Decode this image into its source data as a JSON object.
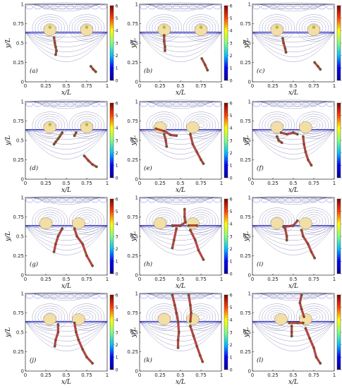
{
  "figure": {
    "rows": 4,
    "cols": 3
  },
  "chart_data": {
    "type": "scatter",
    "xlabel": "x/L",
    "ylabel": "y/L",
    "x_ticks": [
      "0",
      "0.25",
      "0.5",
      "0.75",
      "1"
    ],
    "y_ticks": [
      "0",
      "0.25",
      "0.5",
      "0.75",
      "1"
    ],
    "xlim": [
      0,
      1
    ],
    "ylim": [
      0,
      1
    ],
    "interface_y": 0.64,
    "colorbar": {
      "range": [
        0,
        6
      ],
      "ticks": [
        "0",
        "1",
        "2",
        "3",
        "4",
        "5",
        "6"
      ],
      "colormap": [
        "#00008f",
        "#0000ff",
        "#00bfff",
        "#7fff7f",
        "#ffff00",
        "#ff4000",
        "#800000"
      ]
    },
    "colors": {
      "contour": "#5a5aa0",
      "particles": "#b03030",
      "particle_edge": "#3a7a3a",
      "lens": "#f2dfa8",
      "interface": "#2b2bb8"
    },
    "panels": [
      {
        "label": "(a)",
        "ylabel": "y/L",
        "lenses_x": [
          0.3,
          0.75
        ],
        "lens_markers": true,
        "traces": [
          [
            [
              0.35,
              0.57
            ],
            [
              0.36,
              0.5
            ],
            [
              0.37,
              0.45
            ],
            [
              0.38,
              0.4
            ],
            [
              0.37,
              0.35
            ]
          ],
          [
            [
              0.8,
              0.2
            ],
            [
              0.83,
              0.16
            ],
            [
              0.86,
              0.13
            ]
          ]
        ]
      },
      {
        "label": "(b)",
        "ylabel": "y/L",
        "lenses_x": [
          0.3,
          0.75
        ],
        "lens_markers": true,
        "traces": [
          [
            [
              0.3,
              0.6
            ],
            [
              0.3,
              0.52
            ],
            [
              0.31,
              0.45
            ],
            [
              0.31,
              0.4
            ]
          ],
          [
            [
              0.76,
              0.3
            ],
            [
              0.8,
              0.22
            ],
            [
              0.83,
              0.15
            ]
          ]
        ]
      },
      {
        "label": "(c)",
        "ylabel": "y/L",
        "lenses_x": [
          0.3,
          0.75
        ],
        "lens_markers": true,
        "traces": [
          [
            [
              0.37,
              0.56
            ],
            [
              0.38,
              0.5
            ],
            [
              0.4,
              0.43
            ],
            [
              0.41,
              0.38
            ]
          ],
          [
            [
              0.76,
              0.25
            ],
            [
              0.8,
              0.2
            ],
            [
              0.83,
              0.16
            ]
          ]
        ]
      },
      {
        "label": "(d)",
        "ylabel": "y/L",
        "lenses_x": [
          0.3,
          0.75
        ],
        "lens_markers": true,
        "traces": [
          [
            [
              0.45,
              0.6
            ],
            [
              0.42,
              0.55
            ],
            [
              0.4,
              0.52
            ],
            [
              0.37,
              0.48
            ],
            [
              0.35,
              0.45
            ]
          ],
          [
            [
              0.62,
              0.6
            ],
            [
              0.6,
              0.56
            ]
          ],
          [
            [
              0.72,
              0.3
            ],
            [
              0.77,
              0.24
            ],
            [
              0.82,
              0.19
            ],
            [
              0.87,
              0.16
            ]
          ]
        ]
      },
      {
        "label": "(e)",
        "ylabel": "y/L",
        "lenses_x": [
          0.25,
          0.65
        ],
        "lens_markers": false,
        "traces": [
          [
            [
              0.2,
              0.65
            ],
            [
              0.3,
              0.62
            ],
            [
              0.38,
              0.57
            ],
            [
              0.45,
              0.56
            ]
          ],
          [
            [
              0.3,
              0.58
            ],
            [
              0.32,
              0.5
            ],
            [
              0.33,
              0.42
            ]
          ],
          [
            [
              0.62,
              0.58
            ],
            [
              0.65,
              0.45
            ],
            [
              0.7,
              0.35
            ],
            [
              0.75,
              0.25
            ],
            [
              0.78,
              0.2
            ]
          ]
        ]
      },
      {
        "label": "(f)",
        "ylabel": "y/L",
        "lenses_x": [
          0.3,
          0.65
        ],
        "lens_markers": false,
        "traces": [
          [
            [
              0.35,
              0.6
            ],
            [
              0.42,
              0.58
            ],
            [
              0.5,
              0.6
            ],
            [
              0.55,
              0.58
            ]
          ],
          [
            [
              0.3,
              0.55
            ],
            [
              0.32,
              0.5
            ],
            [
              0.36,
              0.47
            ]
          ],
          [
            [
              0.62,
              0.55
            ],
            [
              0.63,
              0.45
            ],
            [
              0.65,
              0.35
            ],
            [
              0.68,
              0.25
            ],
            [
              0.72,
              0.18
            ]
          ]
        ]
      },
      {
        "label": "(g)",
        "ylabel": "y/L",
        "lenses_x": [
          0.25,
          0.65
        ],
        "lens_markers": false,
        "traces": [
          [
            [
              0.45,
              0.6
            ],
            [
              0.4,
              0.5
            ],
            [
              0.37,
              0.4
            ],
            [
              0.35,
              0.3
            ]
          ],
          [
            [
              0.6,
              0.6
            ],
            [
              0.63,
              0.5
            ],
            [
              0.7,
              0.4
            ],
            [
              0.75,
              0.25
            ],
            [
              0.82,
              0.12
            ]
          ]
        ]
      },
      {
        "label": "(h)",
        "ylabel": "y/L",
        "lenses_x": [
          0.25,
          0.65
        ],
        "lens_markers": false,
        "traces": [
          [
            [
              0.55,
              0.85
            ],
            [
              0.55,
              0.75
            ],
            [
              0.56,
              0.68
            ],
            [
              0.5,
              0.64
            ],
            [
              0.4,
              0.64
            ]
          ],
          [
            [
              0.6,
              0.64
            ],
            [
              0.7,
              0.64
            ]
          ],
          [
            [
              0.45,
              0.6
            ],
            [
              0.42,
              0.45
            ],
            [
              0.4,
              0.35
            ]
          ],
          [
            [
              0.62,
              0.58
            ],
            [
              0.68,
              0.45
            ],
            [
              0.72,
              0.32
            ],
            [
              0.78,
              0.2
            ]
          ]
        ]
      },
      {
        "label": "(i)",
        "ylabel": "y/L",
        "lenses_x": [
          0.3,
          0.65
        ],
        "lens_markers": false,
        "traces": [
          [
            [
              0.55,
              0.7
            ],
            [
              0.5,
              0.64
            ],
            [
              0.38,
              0.62
            ]
          ],
          [
            [
              0.4,
              0.6
            ],
            [
              0.42,
              0.5
            ],
            [
              0.42,
              0.45
            ]
          ],
          [
            [
              0.6,
              0.58
            ],
            [
              0.62,
              0.5
            ],
            [
              0.68,
              0.4
            ],
            [
              0.72,
              0.3
            ],
            [
              0.76,
              0.22
            ]
          ]
        ]
      },
      {
        "label": "(j)",
        "ylabel": "y/L",
        "lenses_x": [
          0.3,
          0.65
        ],
        "lens_markers": false,
        "traces": [
          [
            [
              0.4,
              0.6
            ],
            [
              0.4,
              0.5
            ],
            [
              0.37,
              0.4
            ],
            [
              0.36,
              0.32
            ]
          ],
          [
            [
              0.6,
              0.62
            ],
            [
              0.62,
              0.5
            ],
            [
              0.65,
              0.4
            ],
            [
              0.7,
              0.28
            ],
            [
              0.75,
              0.18
            ],
            [
              0.82,
              0.1
            ]
          ]
        ]
      },
      {
        "label": "(k)",
        "ylabel": "y/L",
        "lenses_x": [
          0.3,
          0.65
        ],
        "lens_markers": false,
        "traces": [
          [
            [
              0.4,
              0.98
            ],
            [
              0.43,
              0.85
            ],
            [
              0.45,
              0.75
            ],
            [
              0.47,
              0.64
            ],
            [
              0.48,
              0.5
            ],
            [
              0.47,
              0.4
            ],
            [
              0.47,
              0.3
            ]
          ],
          [
            [
              0.6,
              0.98
            ],
            [
              0.62,
              0.85
            ],
            [
              0.63,
              0.75
            ],
            [
              0.62,
              0.64
            ]
          ],
          [
            [
              0.62,
              0.58
            ],
            [
              0.66,
              0.45
            ],
            [
              0.7,
              0.32
            ],
            [
              0.74,
              0.2
            ],
            [
              0.77,
              0.12
            ]
          ]
        ]
      },
      {
        "label": "(l)",
        "ylabel": "y/L",
        "lenses_x": [
          0.35,
          0.65
        ],
        "lens_markers": false,
        "traces": [
          [
            [
              0.6,
              0.98
            ],
            [
              0.58,
              0.88
            ],
            [
              0.6,
              0.8
            ],
            [
              0.63,
              0.7
            ]
          ],
          [
            [
              0.45,
              0.62
            ],
            [
              0.55,
              0.62
            ],
            [
              0.62,
              0.62
            ]
          ],
          [
            [
              0.48,
              0.58
            ],
            [
              0.48,
              0.5
            ],
            [
              0.48,
              0.45
            ]
          ],
          [
            [
              0.65,
              0.55
            ],
            [
              0.7,
              0.42
            ],
            [
              0.75,
              0.3
            ],
            [
              0.78,
              0.18
            ],
            [
              0.83,
              0.1
            ]
          ]
        ]
      }
    ]
  }
}
